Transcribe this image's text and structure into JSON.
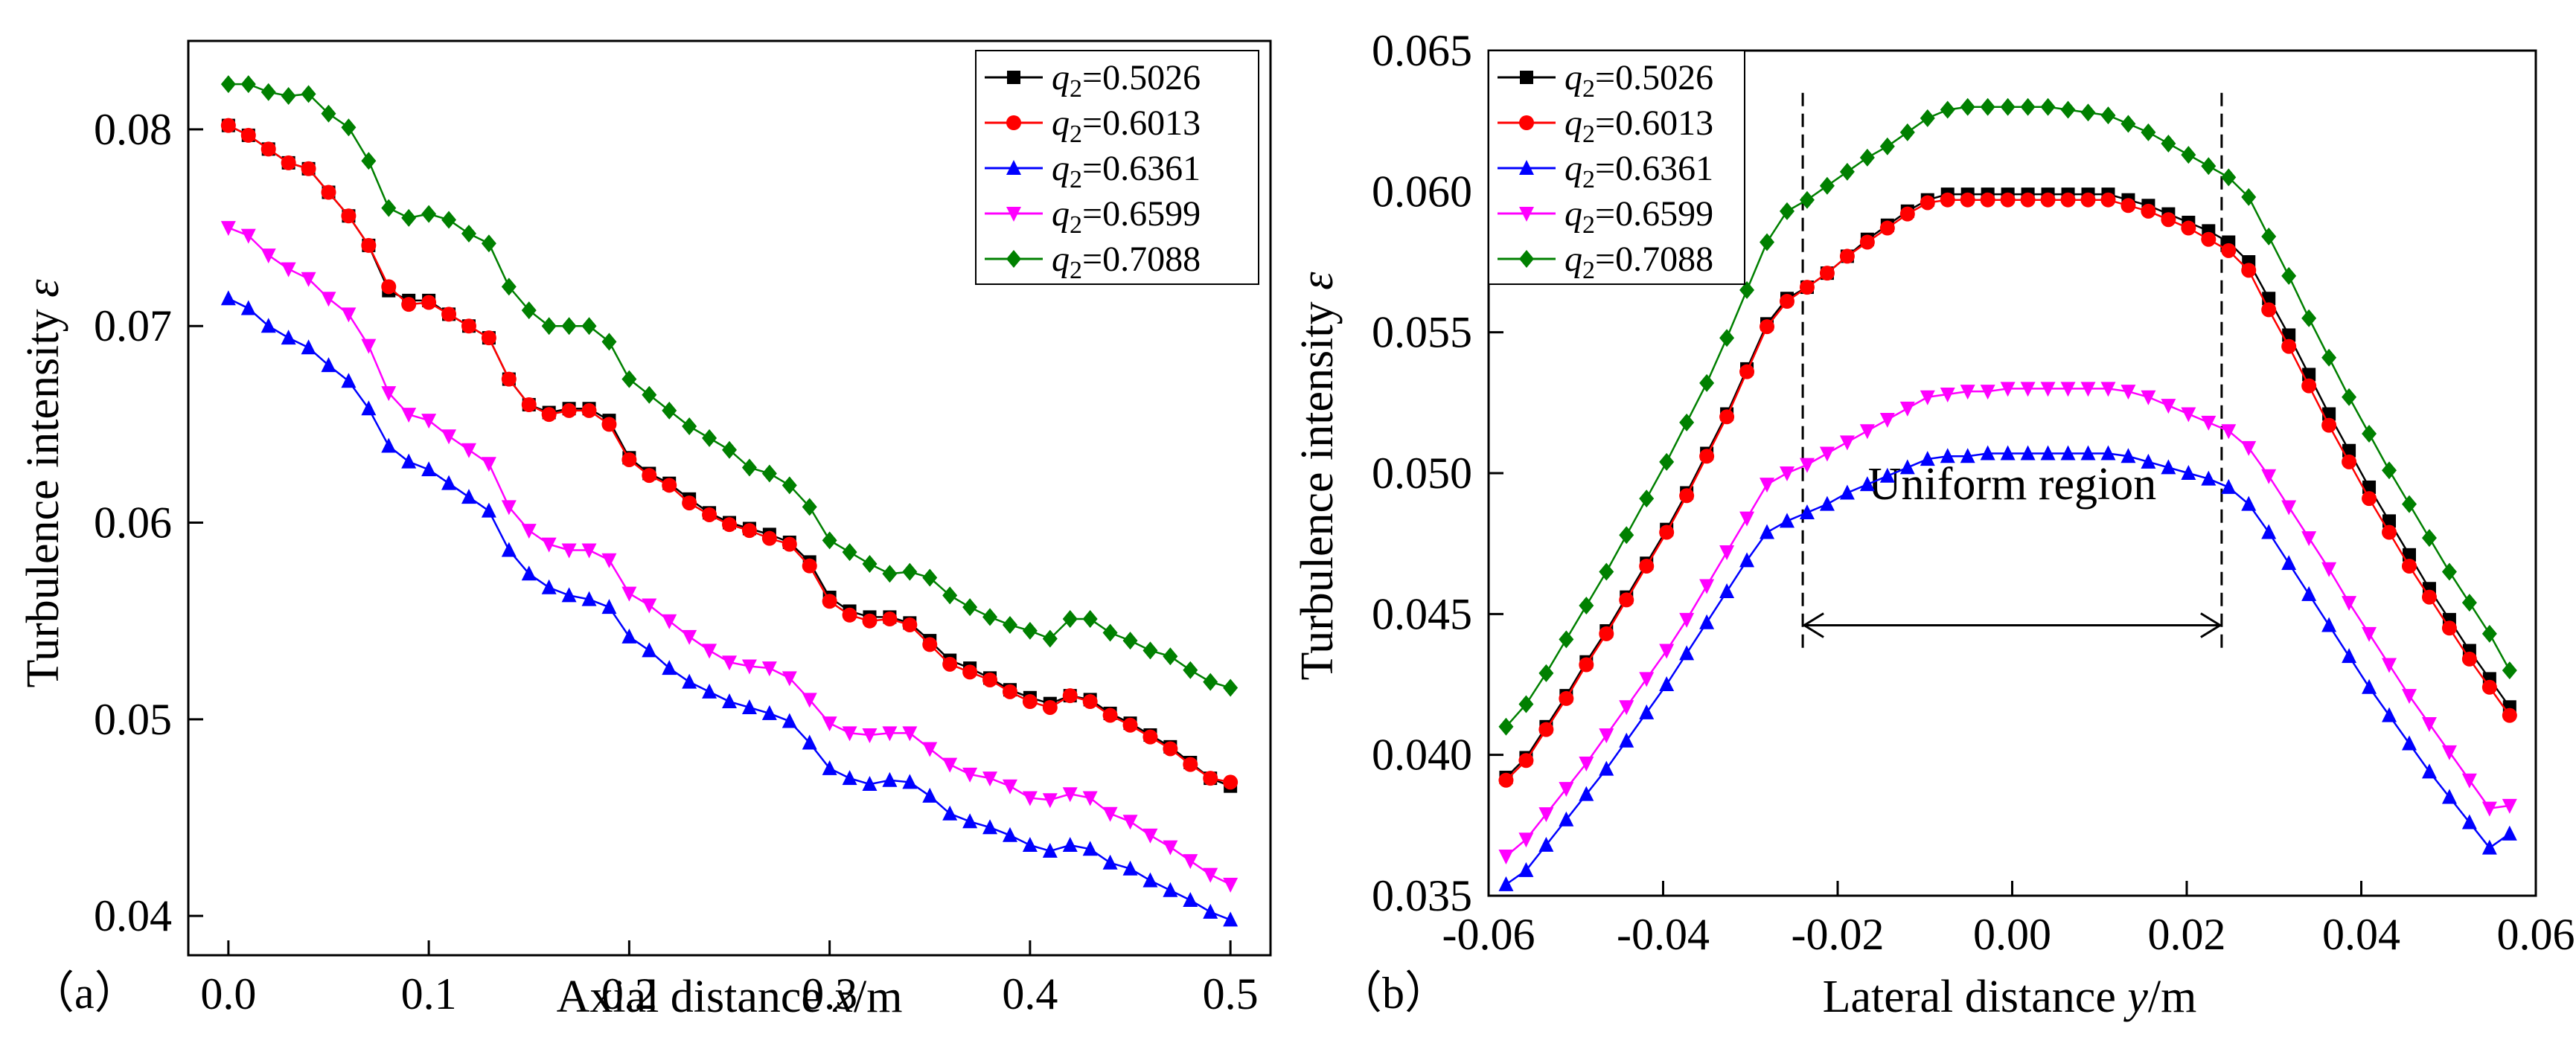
{
  "chart_data": [
    {
      "type": "line",
      "panel_label": "（a）",
      "xlabel": "Axial distance",
      "xlabel_var": "x",
      "xlabel_unit": "/m",
      "ylabel": "Turbulence intensity",
      "ylabel_var": "ε",
      "xlim": [
        -0.02,
        0.52
      ],
      "ylim": [
        0.038,
        0.0845
      ],
      "xticks": [
        0.0,
        0.1,
        0.2,
        0.3,
        0.4,
        0.5
      ],
      "xtick_labels": [
        "0.0",
        "0.1",
        "0.2",
        "0.3",
        "0.4",
        "0.5"
      ],
      "yticks": [
        0.04,
        0.05,
        0.06,
        0.07,
        0.08
      ],
      "ytick_labels": [
        "0.04",
        "0.05",
        "0.06",
        "0.07",
        "0.08"
      ],
      "legend_position": "top-right",
      "x": [
        0,
        0.01,
        0.02,
        0.03,
        0.04,
        0.05,
        0.06,
        0.07,
        0.08,
        0.09,
        0.1,
        0.11,
        0.12,
        0.13,
        0.14,
        0.15,
        0.16,
        0.17,
        0.18,
        0.19,
        0.2,
        0.21,
        0.22,
        0.23,
        0.24,
        0.25,
        0.26,
        0.27,
        0.28,
        0.29,
        0.3,
        0.31,
        0.32,
        0.33,
        0.34,
        0.35,
        0.36,
        0.37,
        0.38,
        0.39,
        0.4,
        0.41,
        0.42,
        0.43,
        0.44,
        0.45,
        0.46,
        0.47,
        0.48,
        0.49,
        0.5
      ],
      "series": [
        {
          "name_var": "q",
          "name_sub": "2",
          "name_val": "=0.5026",
          "color": "#000000",
          "marker": "square",
          "values": [
            0.0802,
            0.0797,
            0.079,
            0.0783,
            0.078,
            0.0768,
            0.0756,
            0.0741,
            0.0718,
            0.0713,
            0.0713,
            0.0706,
            0.07,
            0.0694,
            0.0673,
            0.066,
            0.0656,
            0.0658,
            0.0658,
            0.0652,
            0.0633,
            0.0625,
            0.062,
            0.0612,
            0.0605,
            0.06,
            0.0597,
            0.0594,
            0.059,
            0.058,
            0.0562,
            0.0555,
            0.0552,
            0.0552,
            0.0549,
            0.054,
            0.053,
            0.0526,
            0.0521,
            0.0515,
            0.0511,
            0.0508,
            0.0512,
            0.051,
            0.0503,
            0.0498,
            0.0492,
            0.0486,
            0.0478,
            0.047,
            0.0466
          ]
        },
        {
          "name_var": "q",
          "name_sub": "2",
          "name_val": "=0.6013",
          "color": "#ff0000",
          "marker": "circle",
          "values": [
            0.0802,
            0.0797,
            0.079,
            0.0783,
            0.078,
            0.0768,
            0.0756,
            0.0741,
            0.072,
            0.0711,
            0.0712,
            0.0706,
            0.07,
            0.0694,
            0.0673,
            0.066,
            0.0655,
            0.0657,
            0.0657,
            0.065,
            0.0632,
            0.0624,
            0.0619,
            0.061,
            0.0604,
            0.0599,
            0.0596,
            0.0592,
            0.0589,
            0.0578,
            0.056,
            0.0553,
            0.055,
            0.0551,
            0.0548,
            0.0538,
            0.0528,
            0.0524,
            0.052,
            0.0514,
            0.0509,
            0.0506,
            0.0512,
            0.0509,
            0.0502,
            0.0497,
            0.0491,
            0.0485,
            0.0477,
            0.047,
            0.0468
          ]
        },
        {
          "name_var": "q",
          "name_sub": "2",
          "name_val": "=0.6361",
          "color": "#0000ff",
          "marker": "triangle-up",
          "values": [
            0.0714,
            0.0709,
            0.07,
            0.0694,
            0.0689,
            0.068,
            0.0672,
            0.0658,
            0.0639,
            0.0631,
            0.0627,
            0.062,
            0.0613,
            0.0606,
            0.0586,
            0.0574,
            0.0567,
            0.0563,
            0.0561,
            0.0557,
            0.0542,
            0.0535,
            0.0526,
            0.0519,
            0.0514,
            0.0509,
            0.0506,
            0.0503,
            0.0499,
            0.0488,
            0.0475,
            0.047,
            0.0467,
            0.0469,
            0.0468,
            0.0461,
            0.0452,
            0.0448,
            0.0445,
            0.0441,
            0.0436,
            0.0433,
            0.0436,
            0.0434,
            0.0427,
            0.0424,
            0.0418,
            0.0413,
            0.0408,
            0.0402,
            0.0398
          ]
        },
        {
          "name_var": "q",
          "name_sub": "2",
          "name_val": "=0.6599",
          "color": "#ff00ff",
          "marker": "triangle-down",
          "values": [
            0.075,
            0.0746,
            0.0736,
            0.0729,
            0.0724,
            0.0714,
            0.0706,
            0.069,
            0.0666,
            0.0655,
            0.0652,
            0.0644,
            0.0637,
            0.063,
            0.0608,
            0.0596,
            0.0589,
            0.0586,
            0.0586,
            0.0581,
            0.0564,
            0.0558,
            0.055,
            0.0542,
            0.0535,
            0.0529,
            0.0527,
            0.0526,
            0.0521,
            0.051,
            0.0498,
            0.0493,
            0.0492,
            0.0493,
            0.0493,
            0.0485,
            0.0477,
            0.0472,
            0.047,
            0.0466,
            0.046,
            0.0459,
            0.0462,
            0.046,
            0.0452,
            0.0448,
            0.0441,
            0.0435,
            0.0428,
            0.0421,
            0.0416
          ]
        },
        {
          "name_var": "q",
          "name_sub": "2",
          "name_val": "=0.7088",
          "color": "#008000",
          "marker": "diamond",
          "values": [
            0.0823,
            0.0823,
            0.0819,
            0.0817,
            0.0818,
            0.0808,
            0.0801,
            0.0784,
            0.076,
            0.0755,
            0.0757,
            0.0754,
            0.0747,
            0.0742,
            0.072,
            0.0708,
            0.07,
            0.07,
            0.07,
            0.0692,
            0.0673,
            0.0665,
            0.0657,
            0.0649,
            0.0643,
            0.0637,
            0.0628,
            0.0625,
            0.0619,
            0.0608,
            0.0591,
            0.0585,
            0.0579,
            0.0574,
            0.0575,
            0.0572,
            0.0563,
            0.0557,
            0.0552,
            0.0548,
            0.0545,
            0.0541,
            0.0551,
            0.0551,
            0.0544,
            0.054,
            0.0535,
            0.0532,
            0.0525,
            0.0519,
            0.0516
          ]
        }
      ]
    },
    {
      "type": "line",
      "panel_label": "（b）",
      "xlabel": "Lateral distance",
      "xlabel_var": "y",
      "xlabel_unit": "/m",
      "ylabel": "Turbulence intensity",
      "ylabel_var": "ε",
      "xlim": [
        -0.06,
        0.06
      ],
      "ylim": [
        0.035,
        0.065
      ],
      "xticks": [
        -0.06,
        -0.04,
        -0.02,
        0.0,
        0.02,
        0.04,
        0.06
      ],
      "xtick_labels": [
        "-0.06",
        "-0.04",
        "-0.02",
        "0.00",
        "0.02",
        "0.04",
        "0.06"
      ],
      "yticks": [
        0.035,
        0.04,
        0.045,
        0.05,
        0.055,
        0.06,
        0.065
      ],
      "ytick_labels": [
        "0.035",
        "0.040",
        "0.045",
        "0.050",
        "0.055",
        "0.060",
        "0.065"
      ],
      "legend_position": "top-left",
      "annotation": {
        "text": "Uniform region",
        "x_start": -0.024,
        "x_end": 0.024,
        "arrow_y": 0.0446,
        "text_y": 0.0496,
        "dash_y_top": 0.0635,
        "dash_y_bottom": 0.0438
      },
      "x": [
        -0.058,
        -0.0557,
        -0.0534,
        -0.0511,
        -0.0488,
        -0.0465,
        -0.0442,
        -0.0419,
        -0.0396,
        -0.0373,
        -0.035,
        -0.0327,
        -0.0304,
        -0.0281,
        -0.0258,
        -0.0235,
        -0.0212,
        -0.0189,
        -0.0166,
        -0.0143,
        -0.012,
        -0.0097,
        -0.0074,
        -0.0051,
        -0.0028,
        -0.0005,
        0.0018,
        0.0041,
        0.0064,
        0.0087,
        0.011,
        0.0133,
        0.0156,
        0.0179,
        0.0202,
        0.0225,
        0.0248,
        0.0271,
        0.0294,
        0.0317,
        0.034,
        0.0363,
        0.0386,
        0.0409,
        0.0432,
        0.0455,
        0.0478,
        0.0501,
        0.0524,
        0.0547,
        0.057
      ],
      "series": [
        {
          "name_var": "q",
          "name_sub": "2",
          "name_val": "=0.5026",
          "color": "#000000",
          "marker": "square",
          "values": [
            0.0392,
            0.0399,
            0.041,
            0.0421,
            0.0433,
            0.0444,
            0.0456,
            0.0468,
            0.048,
            0.0493,
            0.0507,
            0.0521,
            0.0537,
            0.0553,
            0.0562,
            0.0566,
            0.0571,
            0.0577,
            0.0583,
            0.0588,
            0.0593,
            0.0597,
            0.0599,
            0.0599,
            0.0599,
            0.0599,
            0.0599,
            0.0599,
            0.0599,
            0.0599,
            0.0599,
            0.0597,
            0.0595,
            0.0592,
            0.0589,
            0.0586,
            0.0582,
            0.0575,
            0.0562,
            0.0549,
            0.0535,
            0.0521,
            0.0508,
            0.0495,
            0.0483,
            0.0471,
            0.0459,
            0.0448,
            0.0437,
            0.0427,
            0.0417
          ]
        },
        {
          "name_var": "q",
          "name_sub": "2",
          "name_val": "=0.6013",
          "color": "#ff0000",
          "marker": "circle",
          "values": [
            0.0391,
            0.0398,
            0.0409,
            0.042,
            0.0432,
            0.0443,
            0.0455,
            0.0467,
            0.0479,
            0.0492,
            0.0506,
            0.052,
            0.0536,
            0.0552,
            0.0561,
            0.0566,
            0.0571,
            0.0577,
            0.0582,
            0.0587,
            0.0592,
            0.0596,
            0.0597,
            0.0597,
            0.0597,
            0.0597,
            0.0597,
            0.0597,
            0.0597,
            0.0597,
            0.0597,
            0.0595,
            0.0593,
            0.059,
            0.0587,
            0.0583,
            0.0579,
            0.0572,
            0.0558,
            0.0545,
            0.0531,
            0.0517,
            0.0504,
            0.0491,
            0.0479,
            0.0467,
            0.0456,
            0.0445,
            0.0434,
            0.0424,
            0.0414
          ]
        },
        {
          "name_var": "q",
          "name_sub": "2",
          "name_val": "=0.6361",
          "color": "#0000ff",
          "marker": "triangle-up",
          "values": [
            0.0354,
            0.0359,
            0.0368,
            0.0377,
            0.0386,
            0.0395,
            0.0405,
            0.0415,
            0.0425,
            0.0436,
            0.0447,
            0.0458,
            0.0469,
            0.0479,
            0.0483,
            0.0486,
            0.0489,
            0.0493,
            0.0496,
            0.0499,
            0.0502,
            0.0505,
            0.0506,
            0.0506,
            0.0507,
            0.0507,
            0.0507,
            0.0507,
            0.0507,
            0.0507,
            0.0507,
            0.0506,
            0.0504,
            0.0502,
            0.05,
            0.0498,
            0.0495,
            0.0489,
            0.0479,
            0.0468,
            0.0457,
            0.0446,
            0.0435,
            0.0424,
            0.0414,
            0.0404,
            0.0394,
            0.0385,
            0.0376,
            0.0367,
            0.0372
          ]
        },
        {
          "name_var": "q",
          "name_sub": "2",
          "name_val": "=0.6599",
          "color": "#ff00ff",
          "marker": "triangle-down",
          "values": [
            0.0364,
            0.037,
            0.0379,
            0.0388,
            0.0397,
            0.0407,
            0.0417,
            0.0427,
            0.0437,
            0.0448,
            0.046,
            0.0472,
            0.0484,
            0.0496,
            0.05,
            0.0503,
            0.0507,
            0.0511,
            0.0515,
            0.0519,
            0.0523,
            0.0527,
            0.0528,
            0.0529,
            0.0529,
            0.053,
            0.053,
            0.053,
            0.053,
            0.053,
            0.053,
            0.0529,
            0.0527,
            0.0524,
            0.0521,
            0.0518,
            0.0515,
            0.0509,
            0.0499,
            0.0488,
            0.0477,
            0.0466,
            0.0454,
            0.0443,
            0.0432,
            0.0421,
            0.0411,
            0.0401,
            0.0391,
            0.0381,
            0.0382
          ]
        },
        {
          "name_var": "q",
          "name_sub": "2",
          "name_val": "=0.7088",
          "color": "#008000",
          "marker": "diamond",
          "values": [
            0.041,
            0.0418,
            0.0429,
            0.0441,
            0.0453,
            0.0465,
            0.0478,
            0.0491,
            0.0504,
            0.0518,
            0.0532,
            0.0548,
            0.0565,
            0.0582,
            0.0593,
            0.0597,
            0.0602,
            0.0607,
            0.0612,
            0.0616,
            0.0621,
            0.0626,
            0.0629,
            0.063,
            0.063,
            0.063,
            0.063,
            0.063,
            0.0629,
            0.0628,
            0.0627,
            0.0624,
            0.0621,
            0.0617,
            0.0613,
            0.0609,
            0.0605,
            0.0598,
            0.0584,
            0.057,
            0.0555,
            0.0541,
            0.0527,
            0.0514,
            0.0501,
            0.0489,
            0.0477,
            0.0465,
            0.0454,
            0.0443,
            0.043
          ]
        }
      ]
    }
  ]
}
